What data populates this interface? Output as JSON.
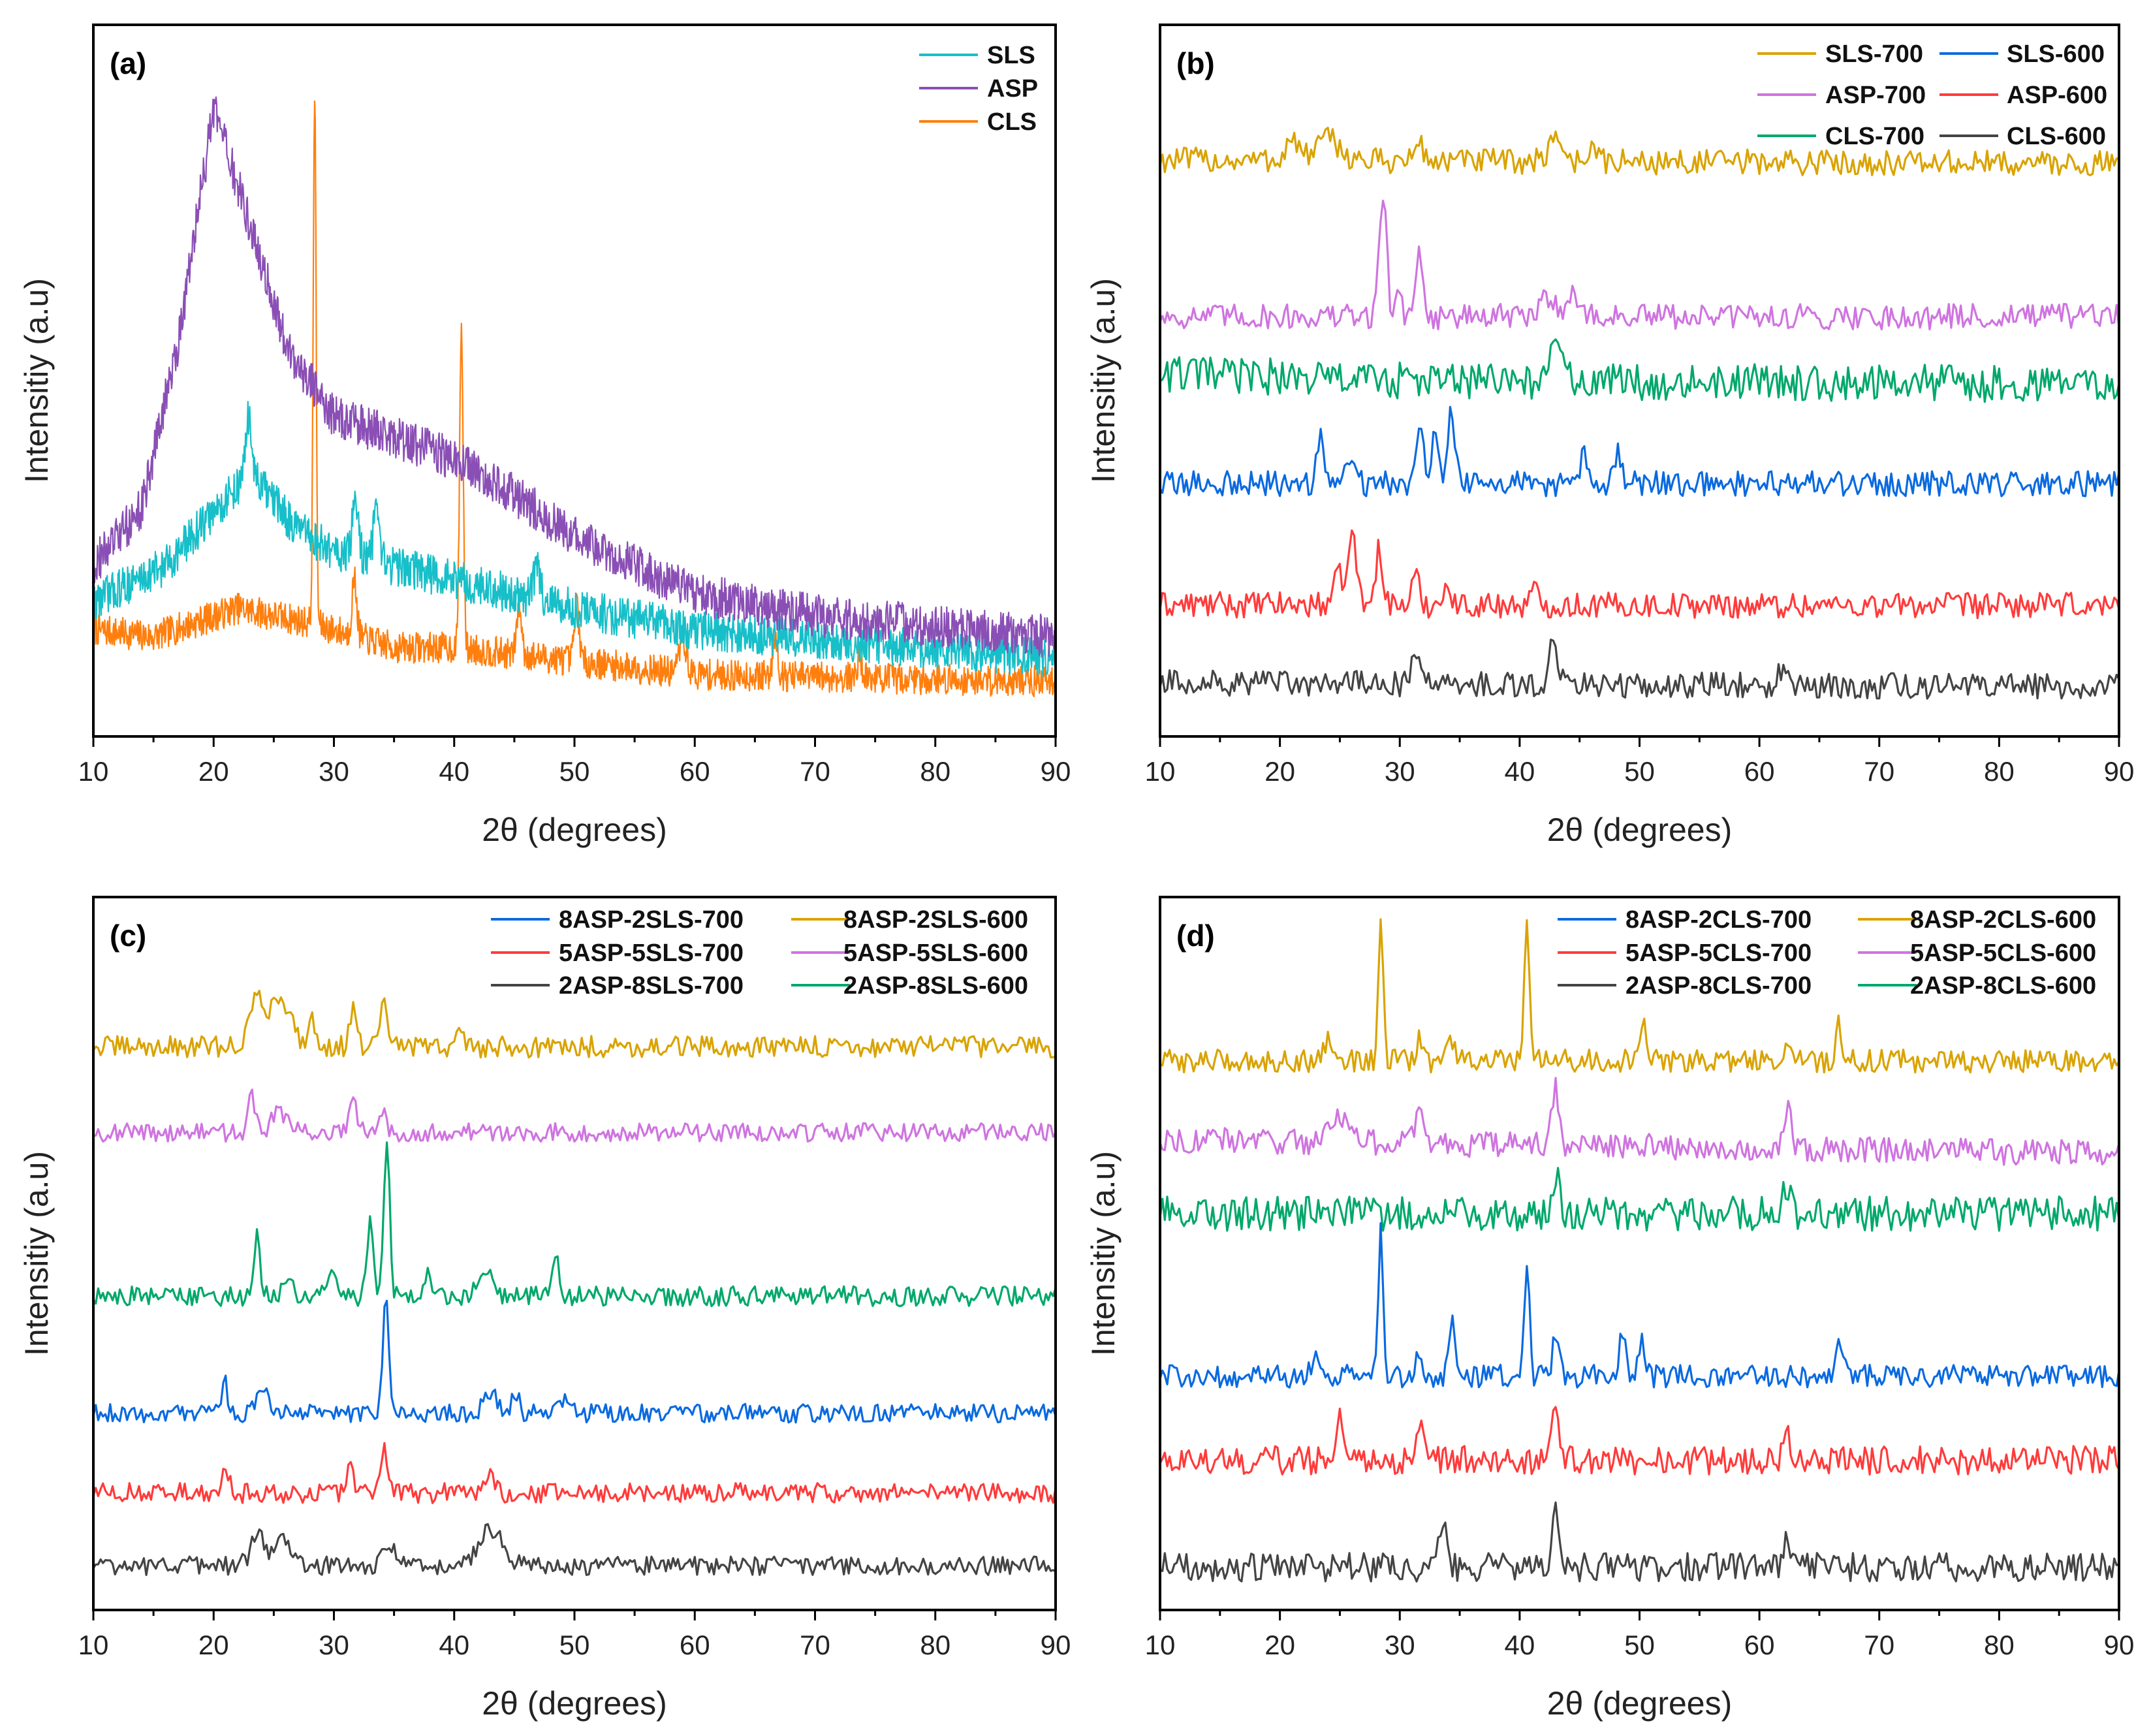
{
  "chart_data": [
    {
      "panel_label": "(a)",
      "type": "line",
      "xlabel": "2θ (degrees)",
      "ylabel": "Intensitiy (a.u)",
      "xlim": [
        10,
        90
      ],
      "ylim": [
        0,
        100
      ],
      "xticks": [
        10,
        20,
        30,
        40,
        50,
        60,
        70,
        80,
        90
      ],
      "legend": {
        "position": "top-right",
        "columns": 1,
        "order": [
          "SLS",
          "ASP",
          "CLS"
        ]
      },
      "series": [
        {
          "name": "CLS",
          "color": "#ff7f0e",
          "step": 0.05,
          "noise": 2.2,
          "baseline": [
            [
              10,
              15
            ],
            [
              15,
              14
            ],
            [
              22,
              18
            ],
            [
              28,
              16
            ],
            [
              35,
              12.5
            ],
            [
              40,
              12.5
            ],
            [
              50,
              10.6
            ],
            [
              60,
              8.7
            ],
            [
              90,
              7.7
            ]
          ],
          "peaks": [
            [
              28.4,
              75,
              0.12
            ],
            [
              40.6,
              45,
              0.15
            ],
            [
              31.7,
              8,
              0.2
            ],
            [
              45.4,
              7,
              0.2
            ],
            [
              50.2,
              8,
              0.2
            ],
            [
              59,
              5,
              0.3
            ],
            [
              66.7,
              6,
              0.2
            ],
            [
              73.7,
              3,
              0.2
            ]
          ]
        },
        {
          "name": "SLS",
          "color": "#17bfc9",
          "step": 0.05,
          "noise": 2.8,
          "baseline": [
            [
              10,
              19
            ],
            [
              16,
              24
            ],
            [
              23,
              37
            ],
            [
              27,
              29
            ],
            [
              30,
              26
            ],
            [
              40,
              22
            ],
            [
              50,
              18
            ],
            [
              60,
              15
            ],
            [
              90,
              11
            ]
          ],
          "peaks": [
            [
              22.9,
              8,
              0.25
            ],
            [
              31.8,
              8,
              0.25
            ],
            [
              33.5,
              6,
              0.25
            ],
            [
              46.9,
              4,
              0.3
            ]
          ]
        },
        {
          "name": "ASP",
          "color": "#8a4fb5",
          "step": 0.05,
          "noise": 3,
          "baseline": [
            [
              10,
              24
            ],
            [
              14,
              32
            ],
            [
              17,
              55
            ],
            [
              20,
              88
            ],
            [
              23,
              72
            ],
            [
              26,
              55
            ],
            [
              30,
              45
            ],
            [
              40,
              39
            ],
            [
              45,
              34
            ],
            [
              50,
              28
            ],
            [
              60,
              20
            ],
            [
              70,
              17
            ],
            [
              90,
              14
            ]
          ],
          "peaks": []
        }
      ]
    },
    {
      "panel_label": "(b)",
      "type": "line",
      "xlabel": "2θ (degrees)",
      "ylabel": "Intensitiy (a.u)",
      "xlim": [
        10,
        90
      ],
      "ylim": [
        0,
        100
      ],
      "xticks": [
        10,
        20,
        30,
        40,
        50,
        60,
        70,
        80,
        90
      ],
      "legend": {
        "position": "top-right",
        "columns": 2,
        "order": [
          "SLS-700",
          "SLS-600",
          "ASP-700",
          "ASP-600",
          "CLS-700",
          "CLS-600"
        ]
      },
      "series": [
        {
          "name": "SLS-700",
          "color": "#d9a300",
          "step": 0.2,
          "noise": 1.8,
          "baseline": [
            [
              10,
              81
            ],
            [
              90,
              80.5
            ]
          ],
          "peaks": [
            [
              21,
              3,
              0.5
            ],
            [
              24,
              3,
              1
            ],
            [
              31.6,
              3,
              0.3
            ],
            [
              43,
              4,
              0.5
            ],
            [
              46,
              2,
              0.4
            ]
          ]
        },
        {
          "name": "ASP-700",
          "color": "#cf74e0",
          "step": 0.2,
          "noise": 1.8,
          "baseline": [
            [
              10,
              59
            ],
            [
              90,
              59
            ]
          ],
          "peaks": [
            [
              28.6,
              18,
              0.3
            ],
            [
              31.6,
              11,
              0.25
            ],
            [
              30,
              4,
              0.2
            ],
            [
              42.5,
              3,
              0.6
            ],
            [
              44.5,
              3,
              0.5
            ]
          ]
        },
        {
          "name": "CLS-700",
          "color": "#00a86b",
          "step": 0.2,
          "noise": 2.6,
          "baseline": [
            [
              10,
              51
            ],
            [
              30,
              50
            ],
            [
              90,
              49.5
            ]
          ],
          "peaks": [
            [
              43,
              4,
              0.6
            ]
          ]
        },
        {
          "name": "SLS-600",
          "color": "#0a6ae0",
          "step": 0.2,
          "noise": 1.8,
          "baseline": [
            [
              10,
              35.5
            ],
            [
              90,
              35.5
            ]
          ],
          "peaks": [
            [
              23.4,
              6,
              0.3
            ],
            [
              26,
              5,
              0.4
            ],
            [
              31.7,
              10,
              0.3
            ],
            [
              32.9,
              7,
              0.3
            ],
            [
              34.3,
              11,
              0.3
            ],
            [
              45.4,
              4,
              0.3
            ],
            [
              48.2,
              4,
              0.3
            ]
          ]
        },
        {
          "name": "ASP-600",
          "color": "#ff3b3b",
          "step": 0.2,
          "noise": 1.8,
          "baseline": [
            [
              10,
              18.5
            ],
            [
              90,
              18.4
            ]
          ],
          "peaks": [
            [
              25,
              4,
              0.5
            ],
            [
              26.1,
              10,
              0.3
            ],
            [
              28.3,
              8,
              0.3
            ],
            [
              31.3,
              4,
              0.3
            ],
            [
              33.8,
              3,
              0.3
            ],
            [
              41.2,
              2,
              0.3
            ]
          ]
        },
        {
          "name": "CLS-600",
          "color": "#444444",
          "step": 0.2,
          "noise": 1.8,
          "baseline": [
            [
              10,
              7.5
            ],
            [
              90,
              7
            ]
          ],
          "peaks": [
            [
              42.8,
              7,
              0.35
            ],
            [
              31.3,
              4,
              0.3
            ],
            [
              62,
              3,
              0.3
            ]
          ]
        }
      ]
    },
    {
      "panel_label": "(c)",
      "type": "line",
      "xlabel": "2θ (degrees)",
      "ylabel": "Intensitiy (a.u)",
      "xlim": [
        10,
        90
      ],
      "ylim": [
        0,
        100
      ],
      "xticks": [
        10,
        20,
        30,
        40,
        50,
        60,
        70,
        80,
        90
      ],
      "legend": {
        "position": "top-right",
        "columns": 2,
        "order": [
          "8ASP-2SLS-700",
          "8ASP-2SLS-600",
          "5ASP-5SLS-700",
          "5ASP-5SLS-600",
          "2ASP-8SLS-700",
          "2ASP-8SLS-600"
        ]
      },
      "series": [
        {
          "name": "8ASP-2SLS-600",
          "color": "#d9a300",
          "step": 0.2,
          "noise": 1.5,
          "baseline": [
            [
              10,
              79
            ],
            [
              90,
              79
            ]
          ],
          "peaks": [
            [
              23.5,
              6,
              0.6
            ],
            [
              25.5,
              7,
              0.9
            ],
            [
              28.2,
              4,
              0.3
            ],
            [
              31.6,
              5,
              0.3
            ],
            [
              34.2,
              6,
              0.3
            ],
            [
              40.5,
              2,
              0.3
            ]
          ]
        },
        {
          "name": "5ASP-5SLS-600",
          "color": "#cf74e0",
          "step": 0.2,
          "noise": 1.3,
          "baseline": [
            [
              10,
              67
            ],
            [
              90,
              67
            ]
          ],
          "peaks": [
            [
              23.2,
              5,
              0.3
            ],
            [
              25.5,
              3,
              0.6
            ],
            [
              31.6,
              4,
              0.3
            ],
            [
              34.1,
              3,
              0.3
            ]
          ]
        },
        {
          "name": "2ASP-8SLS-600",
          "color": "#00a86b",
          "step": 0.2,
          "noise": 1.4,
          "baseline": [
            [
              10,
              44
            ],
            [
              90,
              44
            ]
          ],
          "peaks": [
            [
              34.4,
              21,
              0.25
            ],
            [
              33,
              11,
              0.25
            ],
            [
              23.6,
              9,
              0.25
            ],
            [
              26.2,
              3,
              0.3
            ],
            [
              29.8,
              4,
              0.3
            ],
            [
              37.8,
              3,
              0.3
            ],
            [
              42.5,
              4,
              0.5
            ],
            [
              48.4,
              6,
              0.25
            ]
          ]
        },
        {
          "name": "8ASP-2SLS-700",
          "color": "#0a6ae0",
          "step": 0.2,
          "noise": 1.3,
          "baseline": [
            [
              10,
              27.6
            ],
            [
              90,
              27.6
            ]
          ],
          "peaks": [
            [
              34.3,
              16,
              0.25
            ],
            [
              20.9,
              6,
              0.2
            ],
            [
              24,
              4,
              0.4
            ],
            [
              43,
              3,
              0.5
            ],
            [
              45.1,
              3,
              0.3
            ],
            [
              49,
              2,
              0.5
            ]
          ]
        },
        {
          "name": "5ASP-5SLS-700",
          "color": "#ff3b3b",
          "step": 0.2,
          "noise": 1.4,
          "baseline": [
            [
              10,
              16.4
            ],
            [
              90,
              16.4
            ]
          ],
          "peaks": [
            [
              34.2,
              7,
              0.25
            ],
            [
              31.4,
              4,
              0.25
            ],
            [
              43,
              4,
              0.3
            ],
            [
              21,
              4,
              0.25
            ]
          ]
        },
        {
          "name": "2ASP-8SLS-700",
          "color": "#444444",
          "step": 0.2,
          "noise": 1.3,
          "baseline": [
            [
              10,
              6.2
            ],
            [
              90,
              6.2
            ]
          ],
          "peaks": [
            [
              23.7,
              4,
              0.6
            ],
            [
              25.8,
              4,
              0.6
            ],
            [
              34.5,
              3,
              0.5
            ],
            [
              43,
              5,
              1
            ]
          ]
        }
      ]
    },
    {
      "panel_label": "(d)",
      "type": "line",
      "xlabel": "2θ (degrees)",
      "ylabel": "Intensitiy (a.u)",
      "xlim": [
        10,
        90
      ],
      "ylim": [
        0,
        100
      ],
      "xticks": [
        10,
        20,
        30,
        40,
        50,
        60,
        70,
        80,
        90
      ],
      "legend": {
        "position": "top-right",
        "columns": 2,
        "order": [
          "8ASP-2CLS-700",
          "8ASP-2CLS-600",
          "5ASP-5CLS-700",
          "5ASP-5CLS-600",
          "2ASP-8CLS-700",
          "2ASP-8CLS-600"
        ]
      },
      "series": [
        {
          "name": "8ASP-2CLS-600",
          "color": "#d9a300",
          "step": 0.2,
          "noise": 1.6,
          "baseline": [
            [
              10,
              77
            ],
            [
              90,
              77
            ]
          ],
          "peaks": [
            [
              28.4,
              21,
              0.2
            ],
            [
              40.6,
              19,
              0.2
            ],
            [
              50.3,
              6,
              0.2
            ],
            [
              66.6,
              5,
              0.2
            ],
            [
              31.6,
              4,
              0.2
            ],
            [
              34.3,
              3,
              0.3
            ],
            [
              24,
              3,
              0.4
            ],
            [
              62.3,
              3,
              0.3
            ]
          ]
        },
        {
          "name": "5ASP-5CLS-600",
          "color": "#cf74e0",
          "step": 0.2,
          "noise": 1.8,
          "baseline": [
            [
              10,
              66
            ],
            [
              90,
              64
            ]
          ],
          "peaks": [
            [
              43,
              8,
              0.3
            ],
            [
              62.4,
              6,
              0.3
            ],
            [
              31.6,
              5,
              0.3
            ],
            [
              25,
              4,
              0.8
            ]
          ]
        },
        {
          "name": "2ASP-8CLS-600",
          "color": "#00a86b",
          "step": 0.2,
          "noise": 2.4,
          "baseline": [
            [
              10,
              55.6
            ],
            [
              90,
              55.6
            ]
          ],
          "peaks": [
            [
              43,
              6,
              0.3
            ],
            [
              62.3,
              4,
              0.3
            ]
          ]
        },
        {
          "name": "8ASP-2CLS-700",
          "color": "#0a6ae0",
          "step": 0.2,
          "noise": 1.6,
          "baseline": [
            [
              10,
              32.8
            ],
            [
              90,
              32.8
            ]
          ],
          "peaks": [
            [
              28.4,
              20,
              0.2
            ],
            [
              40.6,
              17,
              0.2
            ],
            [
              34.4,
              8,
              0.25
            ],
            [
              43,
              6,
              0.25
            ],
            [
              48.6,
              6,
              0.25
            ],
            [
              50.2,
              6,
              0.25
            ],
            [
              66.7,
              5,
              0.25
            ],
            [
              31.6,
              3,
              0.3
            ],
            [
              23,
              3,
              0.3
            ]
          ]
        },
        {
          "name": "5ASP-5CLS-700",
          "color": "#ff3b3b",
          "step": 0.2,
          "noise": 2,
          "baseline": [
            [
              10,
              21
            ],
            [
              90,
              21
            ]
          ],
          "peaks": [
            [
              43,
              8,
              0.3
            ],
            [
              25,
              6,
              0.4
            ],
            [
              31.6,
              5,
              0.3
            ],
            [
              62.4,
              3,
              0.3
            ]
          ]
        },
        {
          "name": "2ASP-8CLS-700",
          "color": "#444444",
          "step": 0.2,
          "noise": 2,
          "baseline": [
            [
              10,
              6
            ],
            [
              90,
              6
            ]
          ],
          "peaks": [
            [
              43,
              9,
              0.3
            ],
            [
              33.6,
              5,
              0.4
            ],
            [
              62.3,
              4,
              0.3
            ]
          ]
        }
      ]
    }
  ]
}
